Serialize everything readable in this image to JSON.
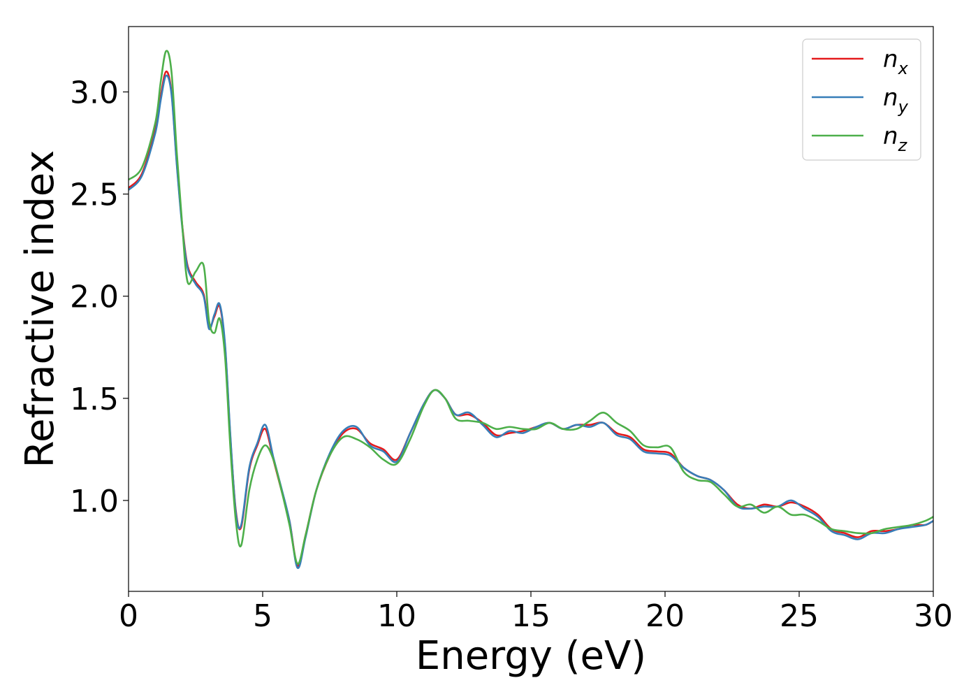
{
  "chart_data": {
    "type": "line",
    "xlabel": "Energy (eV)",
    "ylabel": "Refractive index",
    "xlim": [
      0,
      30
    ],
    "ylim": [
      0.555,
      3.32
    ],
    "xticks": [
      0,
      5,
      10,
      15,
      20,
      25,
      30
    ],
    "xtick_labels": [
      "0",
      "5",
      "10",
      "15",
      "20",
      "25",
      "30"
    ],
    "yticks": [
      1.0,
      1.5,
      2.0,
      2.5,
      3.0
    ],
    "ytick_labels": [
      "1.0",
      "1.5",
      "2.0",
      "2.5",
      "3.0"
    ],
    "grid": false,
    "legend_position": "top-right",
    "x": [
      0,
      0.5,
      1.0,
      1.2,
      1.4,
      1.6,
      1.8,
      2.0,
      2.2,
      2.5,
      2.8,
      3.0,
      3.2,
      3.4,
      3.6,
      3.8,
      4.0,
      4.2,
      4.5,
      4.8,
      5.1,
      5.4,
      5.7,
      6.0,
      6.3,
      6.6,
      7.0,
      7.5,
      8.0,
      8.5,
      9.0,
      9.5,
      10.0,
      10.5,
      11.0,
      11.4,
      11.8,
      12.2,
      12.7,
      13.2,
      13.7,
      14.2,
      14.7,
      15.2,
      15.7,
      16.2,
      16.7,
      17.2,
      17.7,
      18.2,
      18.7,
      19.2,
      19.7,
      20.2,
      20.7,
      21.2,
      21.7,
      22.2,
      22.7,
      23.2,
      23.7,
      24.2,
      24.7,
      25.2,
      25.7,
      26.2,
      26.7,
      27.2,
      27.7,
      28.2,
      28.7,
      29.2,
      29.7,
      30.0
    ],
    "series": [
      {
        "name": "n_x",
        "label_base": "n",
        "label_sub": "x",
        "color": "#e41a1c",
        "values": [
          2.53,
          2.6,
          2.82,
          2.98,
          3.1,
          3.0,
          2.65,
          2.35,
          2.15,
          2.07,
          2.01,
          1.85,
          1.9,
          1.95,
          1.75,
          1.3,
          0.95,
          0.87,
          1.15,
          1.27,
          1.35,
          1.2,
          1.05,
          0.9,
          0.68,
          0.83,
          1.05,
          1.22,
          1.33,
          1.35,
          1.28,
          1.25,
          1.2,
          1.33,
          1.47,
          1.54,
          1.5,
          1.42,
          1.42,
          1.38,
          1.32,
          1.33,
          1.34,
          1.36,
          1.38,
          1.35,
          1.37,
          1.37,
          1.38,
          1.33,
          1.31,
          1.25,
          1.24,
          1.23,
          1.16,
          1.12,
          1.1,
          1.05,
          0.98,
          0.96,
          0.98,
          0.97,
          0.99,
          0.97,
          0.93,
          0.86,
          0.84,
          0.82,
          0.85,
          0.85,
          0.86,
          0.88,
          0.88,
          0.9
        ]
      },
      {
        "name": "n_y",
        "label_base": "n",
        "label_sub": "y",
        "color": "#377eb8",
        "values": [
          2.52,
          2.59,
          2.8,
          2.96,
          3.08,
          2.99,
          2.64,
          2.34,
          2.14,
          2.06,
          2.0,
          1.84,
          1.91,
          1.96,
          1.76,
          1.31,
          0.94,
          0.88,
          1.16,
          1.28,
          1.37,
          1.21,
          1.06,
          0.9,
          0.67,
          0.82,
          1.05,
          1.23,
          1.34,
          1.36,
          1.27,
          1.24,
          1.19,
          1.33,
          1.47,
          1.54,
          1.5,
          1.42,
          1.43,
          1.37,
          1.31,
          1.34,
          1.33,
          1.36,
          1.38,
          1.35,
          1.37,
          1.36,
          1.38,
          1.32,
          1.3,
          1.24,
          1.23,
          1.22,
          1.16,
          1.12,
          1.1,
          1.05,
          0.97,
          0.96,
          0.97,
          0.97,
          1.0,
          0.96,
          0.92,
          0.85,
          0.83,
          0.81,
          0.84,
          0.84,
          0.86,
          0.87,
          0.88,
          0.9
        ]
      },
      {
        "name": "n_z",
        "label_base": "n",
        "label_sub": "z",
        "color": "#4daf4a",
        "values": [
          2.57,
          2.63,
          2.85,
          3.05,
          3.2,
          3.1,
          2.7,
          2.35,
          2.07,
          2.12,
          2.15,
          1.88,
          1.82,
          1.89,
          1.7,
          1.25,
          0.9,
          0.78,
          1.05,
          1.2,
          1.27,
          1.2,
          1.05,
          0.88,
          0.69,
          0.83,
          1.05,
          1.22,
          1.31,
          1.3,
          1.26,
          1.2,
          1.18,
          1.3,
          1.46,
          1.54,
          1.5,
          1.4,
          1.39,
          1.38,
          1.35,
          1.36,
          1.35,
          1.35,
          1.38,
          1.35,
          1.35,
          1.39,
          1.43,
          1.38,
          1.34,
          1.27,
          1.26,
          1.26,
          1.14,
          1.1,
          1.09,
          1.03,
          0.97,
          0.98,
          0.94,
          0.97,
          0.93,
          0.93,
          0.9,
          0.86,
          0.85,
          0.84,
          0.84,
          0.86,
          0.87,
          0.88,
          0.9,
          0.92
        ]
      }
    ]
  }
}
